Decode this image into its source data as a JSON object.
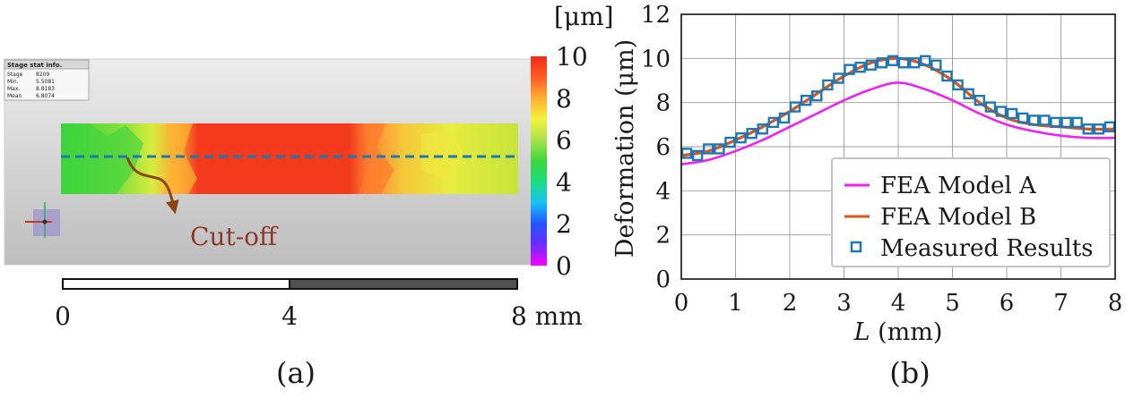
{
  "panel_a": {
    "caption": "(a)",
    "colorbar": {
      "unit_label": "[μm]",
      "ticks": [
        "10",
        "8",
        "6",
        "4",
        "2",
        "0"
      ],
      "min": 0,
      "max": 10,
      "colors": [
        "#ff00ff",
        "#6a2cff",
        "#2255ff",
        "#19c0f5",
        "#19dd80",
        "#3cd63c",
        "#a8e24a",
        "#f2f23c",
        "#ffae33",
        "#ff5c26",
        "#f02a18"
      ]
    },
    "info_box": {
      "title": "Stage stat info.",
      "rows": [
        {
          "label": "Stage",
          "value": "8209"
        },
        {
          "label": "Min.",
          "value": "5.5081"
        },
        {
          "label": "Max.",
          "value": "8.8183"
        },
        {
          "label": "Mean",
          "value": "6.8074"
        }
      ]
    },
    "annotation": "Cut-off",
    "scalebar": {
      "labels": [
        "0",
        "4",
        "8 mm"
      ]
    },
    "colors": {
      "arrow": "#8b4513",
      "cut_line": "#1f77b4",
      "annotation": "#8b3a2a"
    }
  },
  "chart_data": {
    "type": "line",
    "caption": "(b)",
    "title": "",
    "xlabel_italic": "L",
    "xlabel_rest": " (mm)",
    "ylabel": "Deformation (μm)",
    "xlim": [
      0,
      8
    ],
    "ylim": [
      0,
      12
    ],
    "xticks": [
      0,
      1,
      2,
      3,
      4,
      5,
      6,
      7,
      8
    ],
    "yticks": [
      0,
      2,
      4,
      6,
      8,
      10,
      12
    ],
    "grid": true,
    "legend_position": "bottom-right",
    "series": [
      {
        "name": "FEA Model A",
        "style": "line",
        "color": "#ee22ee",
        "x": [
          0,
          0.5,
          1,
          1.5,
          2,
          2.5,
          3,
          3.5,
          4,
          4.5,
          5,
          5.5,
          6,
          6.5,
          7,
          7.5,
          8
        ],
        "y": [
          5.2,
          5.4,
          5.8,
          6.3,
          6.9,
          7.5,
          8.1,
          8.6,
          8.9,
          8.6,
          8.1,
          7.5,
          7.0,
          6.7,
          6.5,
          6.4,
          6.4
        ]
      },
      {
        "name": "FEA Model B",
        "style": "line",
        "color": "#d9541e",
        "x": [
          0,
          0.5,
          1,
          1.5,
          2,
          2.5,
          3,
          3.5,
          4,
          4.5,
          5,
          5.5,
          6,
          6.5,
          7,
          7.5,
          8
        ],
        "y": [
          5.6,
          5.8,
          6.3,
          6.9,
          7.6,
          8.4,
          9.2,
          9.8,
          10.0,
          9.7,
          9.0,
          8.0,
          7.3,
          7.0,
          6.9,
          6.8,
          6.8
        ]
      },
      {
        "name": "Measured Results",
        "style": "marker",
        "color": "#1f77b4",
        "x": [
          0.1,
          0.3,
          0.5,
          0.7,
          0.9,
          1.1,
          1.3,
          1.5,
          1.7,
          1.9,
          2.1,
          2.3,
          2.5,
          2.7,
          2.9,
          3.1,
          3.3,
          3.5,
          3.7,
          3.9,
          4.1,
          4.3,
          4.5,
          4.7,
          4.9,
          5.1,
          5.3,
          5.5,
          5.7,
          5.9,
          6.1,
          6.3,
          6.5,
          6.7,
          6.9,
          7.1,
          7.3,
          7.5,
          7.7,
          7.9
        ],
        "y": [
          5.7,
          5.6,
          5.9,
          5.9,
          6.2,
          6.4,
          6.6,
          6.8,
          7.1,
          7.3,
          7.8,
          8.1,
          8.3,
          8.8,
          9.1,
          9.5,
          9.6,
          9.7,
          9.8,
          9.9,
          9.8,
          9.8,
          9.9,
          9.7,
          9.2,
          8.8,
          8.4,
          8.1,
          7.8,
          7.6,
          7.5,
          7.3,
          7.2,
          7.2,
          7.1,
          7.1,
          7.1,
          6.8,
          6.8,
          6.9
        ]
      }
    ]
  }
}
